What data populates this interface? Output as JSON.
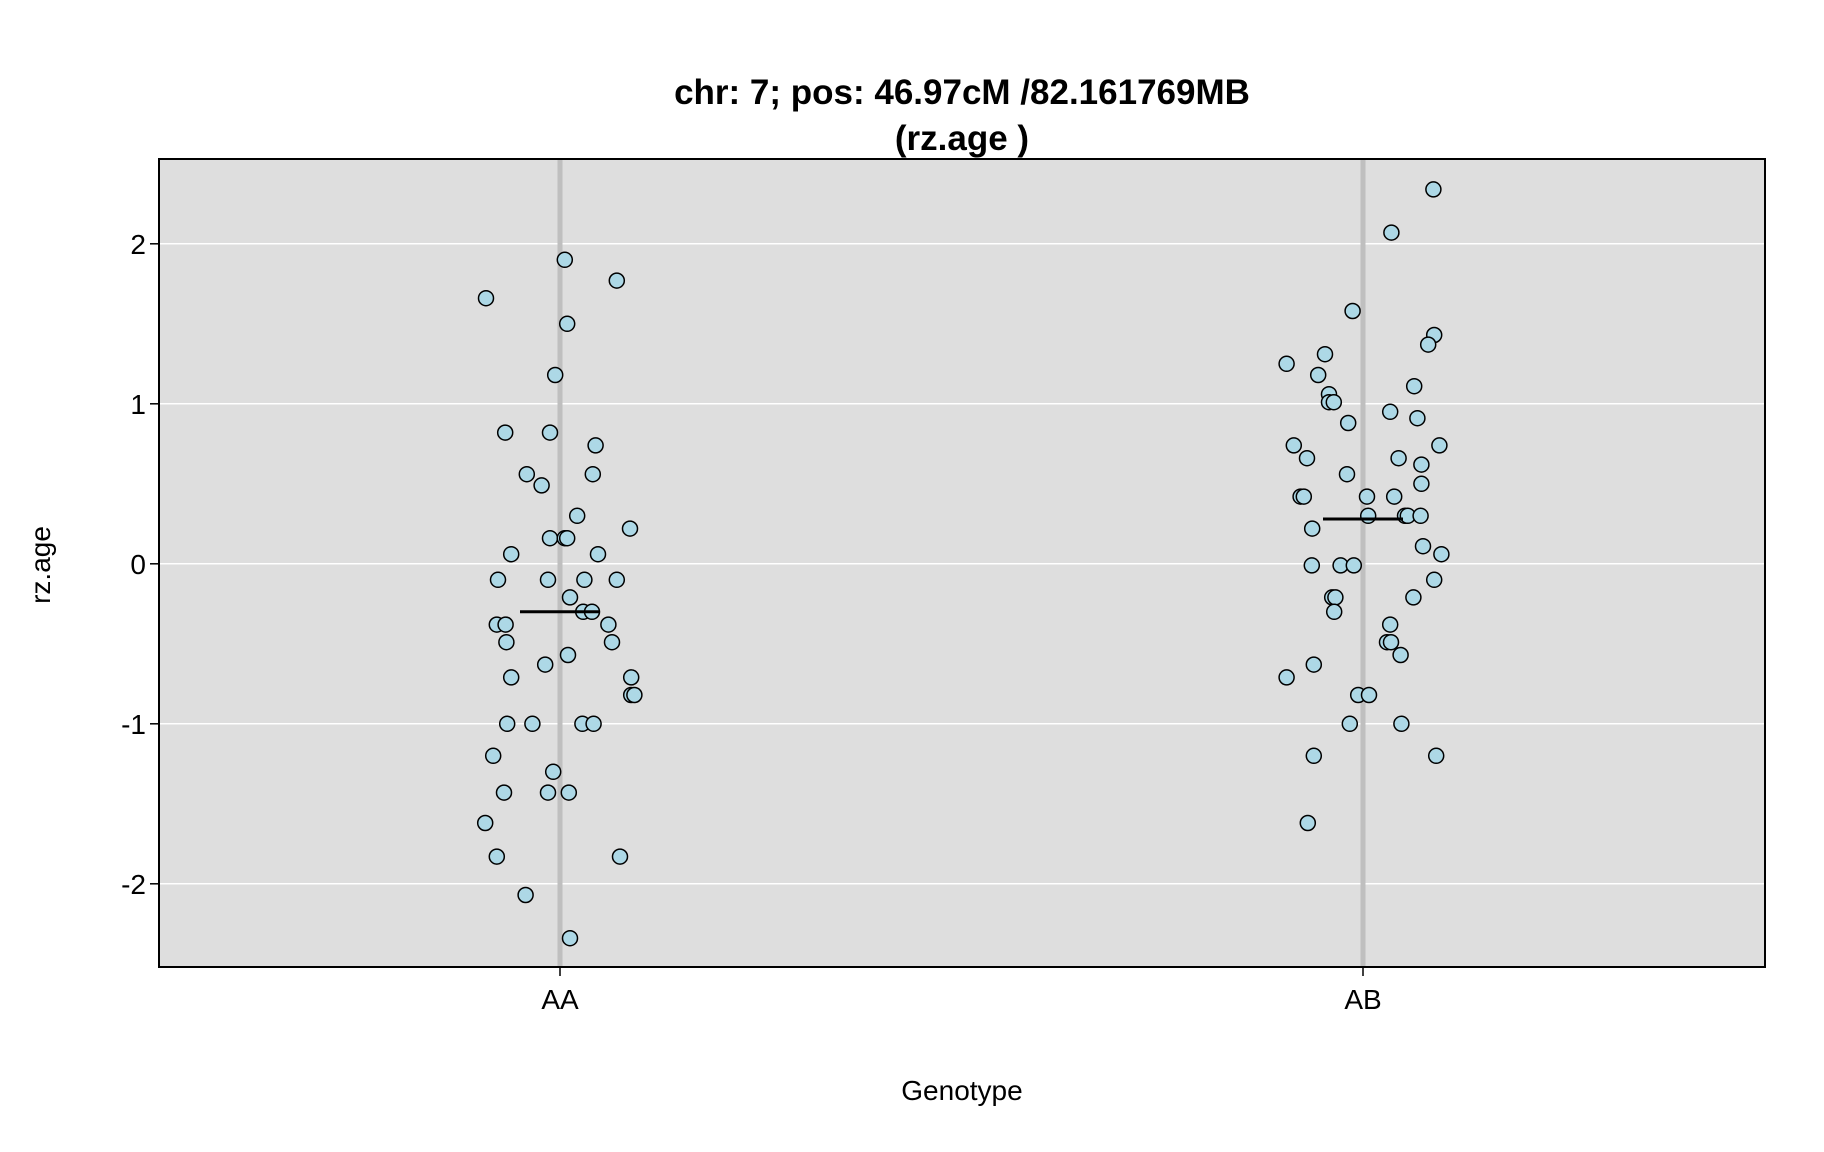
{
  "chart_data": {
    "type": "scatter",
    "title": "chr: 7; pos: 46.97cM /82.161769MB",
    "subtitle": "(rz.age )",
    "xlabel": "Genotype",
    "ylabel": "rz.age",
    "categories": [
      "AA",
      "AB"
    ],
    "ylim": [
      -2.52,
      2.53
    ],
    "yticks": [
      -2,
      -1,
      0,
      1,
      2
    ],
    "grid": true,
    "colors": {
      "panel": "#dedede",
      "gridline": "#ffffff",
      "category_line": "#bfbfbf",
      "point_fill": "#add8e6",
      "point_stroke": "#000000",
      "mean_line": "#000000"
    },
    "series": [
      {
        "category": "AA",
        "mean": -0.3,
        "points": [
          {
            "jitter": -0.185,
            "y": 1.66
          },
          {
            "jitter": 0.012,
            "y": 1.9
          },
          {
            "jitter": 0.142,
            "y": 1.77
          },
          {
            "jitter": 0.018,
            "y": 1.5
          },
          {
            "jitter": -0.012,
            "y": 1.18
          },
          {
            "jitter": -0.137,
            "y": 0.82
          },
          {
            "jitter": -0.025,
            "y": 0.82
          },
          {
            "jitter": 0.089,
            "y": 0.74
          },
          {
            "jitter": -0.083,
            "y": 0.56
          },
          {
            "jitter": 0.082,
            "y": 0.56
          },
          {
            "jitter": -0.046,
            "y": 0.49
          },
          {
            "jitter": 0.043,
            "y": 0.3
          },
          {
            "jitter": -0.025,
            "y": 0.16
          },
          {
            "jitter": 0.012,
            "y": 0.16
          },
          {
            "jitter": 0.018,
            "y": 0.16
          },
          {
            "jitter": 0.175,
            "y": 0.22
          },
          {
            "jitter": -0.122,
            "y": 0.06
          },
          {
            "jitter": 0.095,
            "y": 0.06
          },
          {
            "jitter": -0.155,
            "y": -0.1
          },
          {
            "jitter": -0.03,
            "y": -0.1
          },
          {
            "jitter": 0.061,
            "y": -0.1
          },
          {
            "jitter": 0.142,
            "y": -0.1
          },
          {
            "jitter": 0.025,
            "y": -0.21
          },
          {
            "jitter": 0.058,
            "y": -0.3
          },
          {
            "jitter": 0.08,
            "y": -0.3
          },
          {
            "jitter": -0.158,
            "y": -0.38
          },
          {
            "jitter": -0.136,
            "y": -0.38
          },
          {
            "jitter": 0.121,
            "y": -0.38
          },
          {
            "jitter": -0.134,
            "y": -0.49
          },
          {
            "jitter": 0.13,
            "y": -0.49
          },
          {
            "jitter": 0.02,
            "y": -0.57
          },
          {
            "jitter": -0.037,
            "y": -0.63
          },
          {
            "jitter": -0.122,
            "y": -0.71
          },
          {
            "jitter": 0.178,
            "y": -0.71
          },
          {
            "jitter": 0.178,
            "y": -0.82
          },
          {
            "jitter": 0.186,
            "y": -0.82
          },
          {
            "jitter": -0.132,
            "y": -1.0
          },
          {
            "jitter": -0.069,
            "y": -1.0
          },
          {
            "jitter": 0.056,
            "y": -1.0
          },
          {
            "jitter": 0.084,
            "y": -1.0
          },
          {
            "jitter": -0.167,
            "y": -1.2
          },
          {
            "jitter": -0.017,
            "y": -1.3
          },
          {
            "jitter": -0.14,
            "y": -1.43
          },
          {
            "jitter": -0.03,
            "y": -1.43
          },
          {
            "jitter": 0.022,
            "y": -1.43
          },
          {
            "jitter": -0.187,
            "y": -1.62
          },
          {
            "jitter": -0.158,
            "y": -1.83
          },
          {
            "jitter": 0.15,
            "y": -1.83
          },
          {
            "jitter": -0.086,
            "y": -2.07
          },
          {
            "jitter": 0.025,
            "y": -2.34
          }
        ]
      },
      {
        "category": "AB",
        "mean": 0.28,
        "points": [
          {
            "jitter": 0.176,
            "y": 2.34
          },
          {
            "jitter": 0.071,
            "y": 2.07
          },
          {
            "jitter": -0.026,
            "y": 1.58
          },
          {
            "jitter": 0.178,
            "y": 1.43
          },
          {
            "jitter": 0.163,
            "y": 1.37
          },
          {
            "jitter": -0.191,
            "y": 1.25
          },
          {
            "jitter": -0.095,
            "y": 1.31
          },
          {
            "jitter": -0.112,
            "y": 1.18
          },
          {
            "jitter": -0.085,
            "y": 1.06
          },
          {
            "jitter": -0.085,
            "y": 1.01
          },
          {
            "jitter": -0.073,
            "y": 1.01
          },
          {
            "jitter": 0.128,
            "y": 1.11
          },
          {
            "jitter": 0.068,
            "y": 0.95
          },
          {
            "jitter": 0.136,
            "y": 0.91
          },
          {
            "jitter": -0.037,
            "y": 0.88
          },
          {
            "jitter": -0.173,
            "y": 0.74
          },
          {
            "jitter": 0.191,
            "y": 0.74
          },
          {
            "jitter": -0.14,
            "y": 0.66
          },
          {
            "jitter": 0.089,
            "y": 0.66
          },
          {
            "jitter": 0.146,
            "y": 0.62
          },
          {
            "jitter": -0.04,
            "y": 0.56
          },
          {
            "jitter": 0.146,
            "y": 0.5
          },
          {
            "jitter": -0.156,
            "y": 0.42
          },
          {
            "jitter": -0.148,
            "y": 0.42
          },
          {
            "jitter": 0.01,
            "y": 0.42
          },
          {
            "jitter": 0.078,
            "y": 0.42
          },
          {
            "jitter": 0.013,
            "y": 0.3
          },
          {
            "jitter": 0.105,
            "y": 0.3
          },
          {
            "jitter": 0.112,
            "y": 0.3
          },
          {
            "jitter": 0.144,
            "y": 0.3
          },
          {
            "jitter": -0.127,
            "y": 0.22
          },
          {
            "jitter": 0.15,
            "y": 0.11
          },
          {
            "jitter": 0.196,
            "y": 0.06
          },
          {
            "jitter": -0.128,
            "y": -0.01
          },
          {
            "jitter": -0.056,
            "y": -0.01
          },
          {
            "jitter": -0.023,
            "y": -0.01
          },
          {
            "jitter": 0.178,
            "y": -0.1
          },
          {
            "jitter": -0.077,
            "y": -0.21
          },
          {
            "jitter": -0.069,
            "y": -0.21
          },
          {
            "jitter": 0.126,
            "y": -0.21
          },
          {
            "jitter": -0.072,
            "y": -0.3
          },
          {
            "jitter": 0.068,
            "y": -0.38
          },
          {
            "jitter": 0.06,
            "y": -0.49
          },
          {
            "jitter": 0.07,
            "y": -0.49
          },
          {
            "jitter": 0.094,
            "y": -0.57
          },
          {
            "jitter": -0.123,
            "y": -0.63
          },
          {
            "jitter": -0.191,
            "y": -0.71
          },
          {
            "jitter": -0.012,
            "y": -0.82
          },
          {
            "jitter": 0.015,
            "y": -0.82
          },
          {
            "jitter": -0.033,
            "y": -1.0
          },
          {
            "jitter": 0.096,
            "y": -1.0
          },
          {
            "jitter": -0.123,
            "y": -1.2
          },
          {
            "jitter": 0.183,
            "y": -1.2
          },
          {
            "jitter": -0.138,
            "y": -1.62
          }
        ]
      }
    ]
  }
}
